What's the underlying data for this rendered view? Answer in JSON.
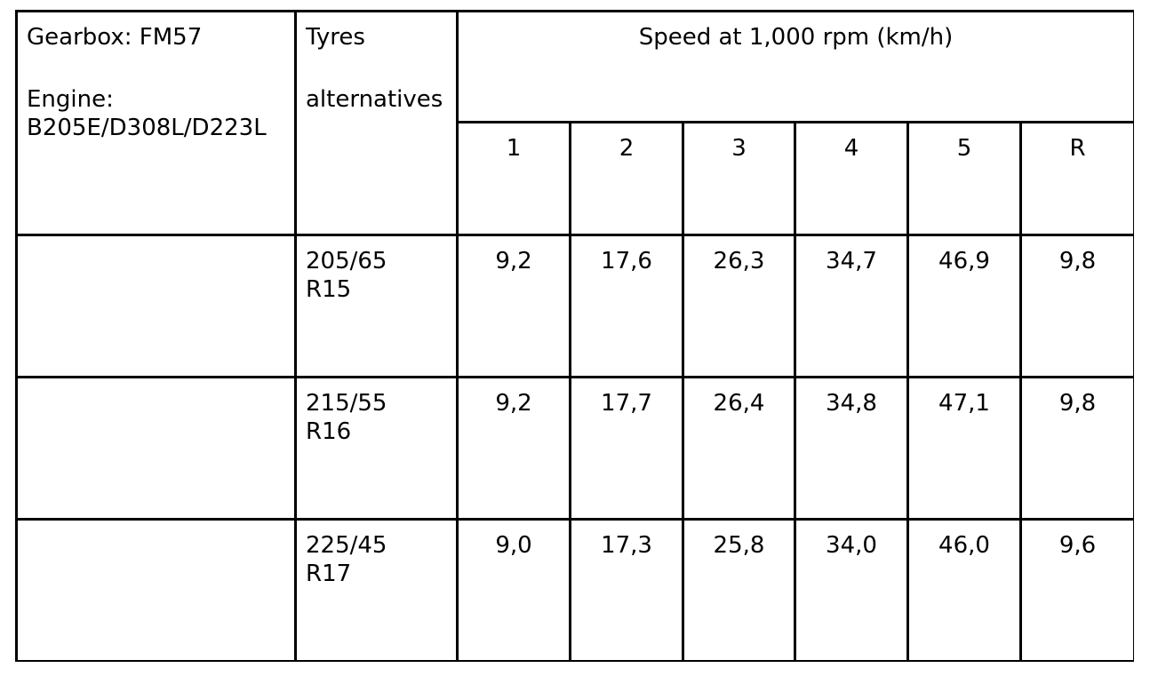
{
  "header": {
    "gearbox": "Gearbox: FM57",
    "engine_label": "Engine:",
    "engine": "B205E/D308L/D223L",
    "tyres": "Tyres",
    "alternatives": "alternatives",
    "speed": "Speed at 1,000 rpm (km/h)",
    "gears": [
      "1",
      "2",
      "3",
      "4",
      "5",
      "R"
    ]
  },
  "rows": [
    {
      "tyre": [
        "205/65",
        "R15"
      ],
      "values": [
        "9,2",
        "17,6",
        "26,3",
        "34,7",
        "46,9",
        "9,8"
      ]
    },
    {
      "tyre": [
        "215/55",
        "R16"
      ],
      "values": [
        "9,2",
        "17,7",
        "26,4",
        "34,8",
        "47,1",
        "9,8"
      ]
    },
    {
      "tyre": [
        "225/45",
        "R17"
      ],
      "values": [
        "9,0",
        "17,3",
        "25,8",
        "34,0",
        "46,0",
        "9,6"
      ]
    }
  ]
}
